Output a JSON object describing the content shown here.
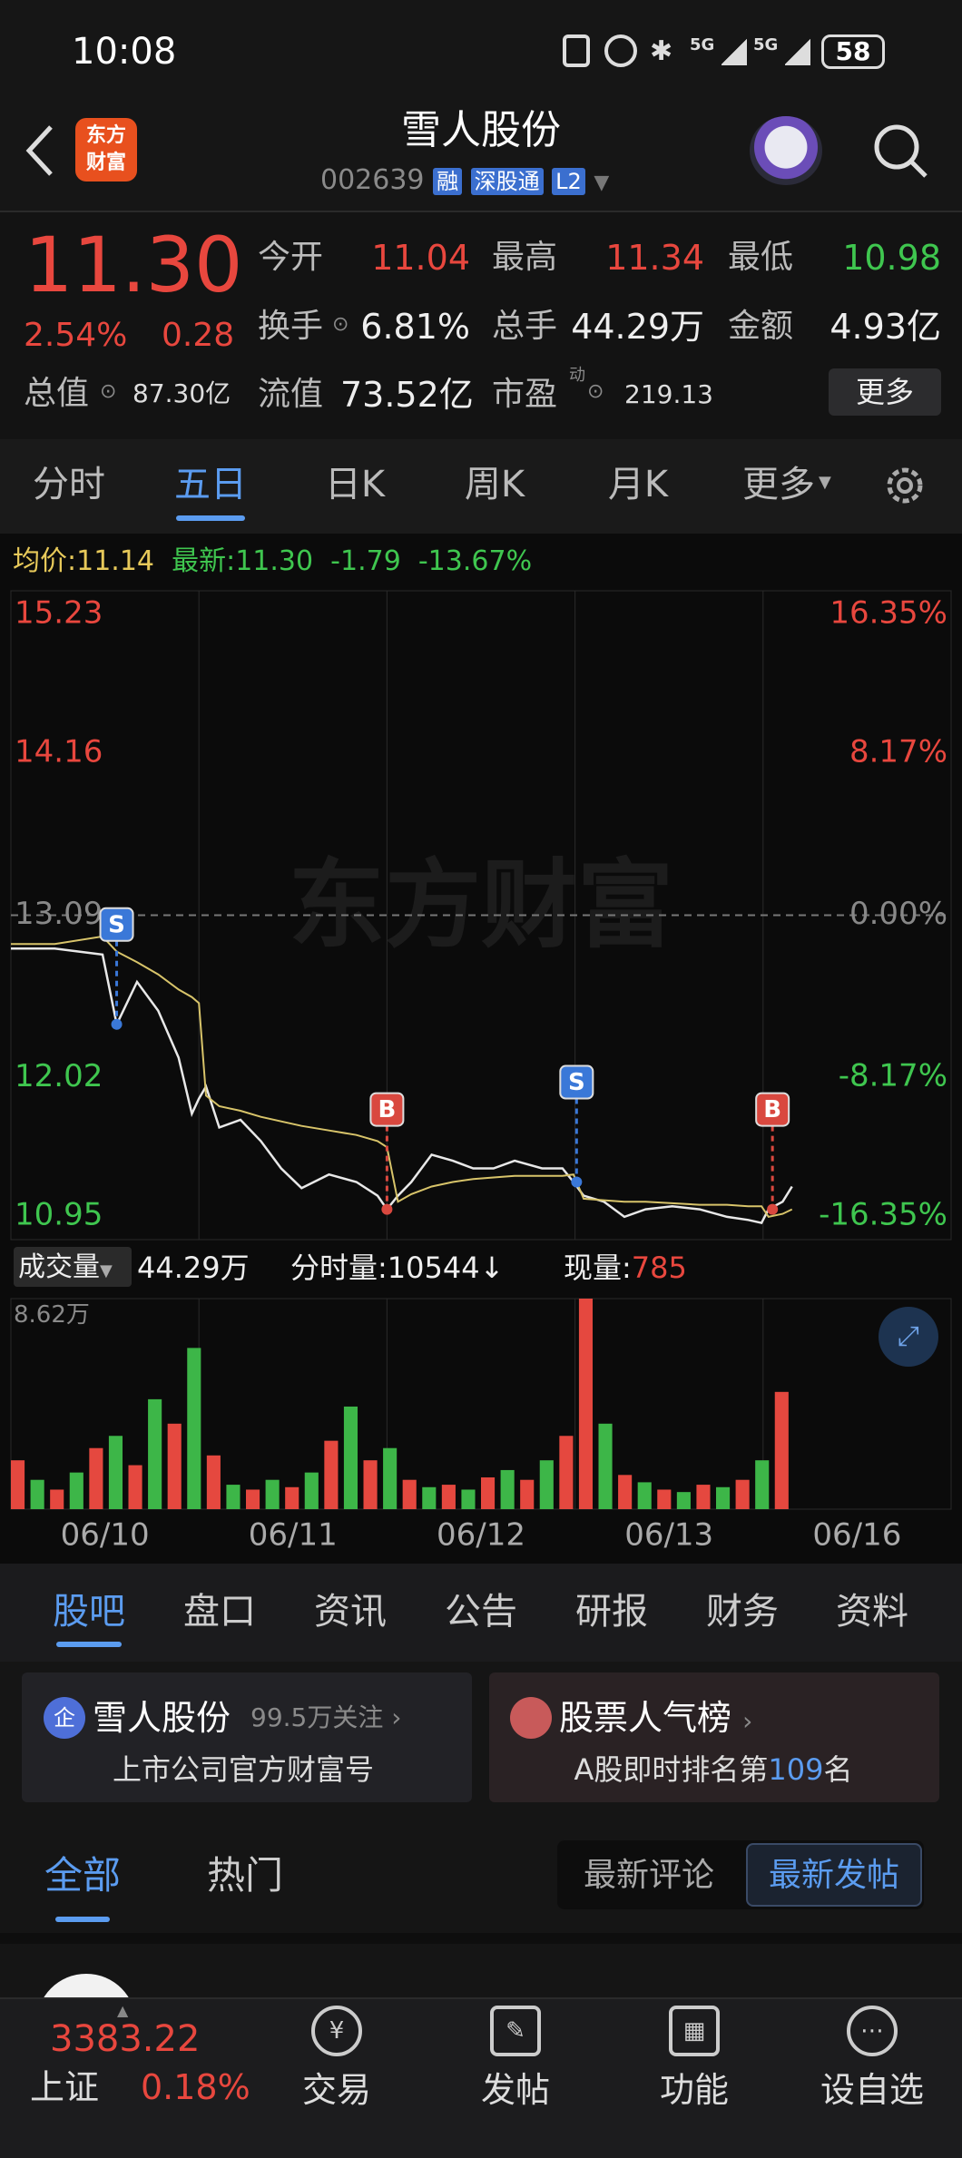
{
  "status_bar": {
    "time": "10:08",
    "signal_1": "5G",
    "signal_2": "5G",
    "battery": "58"
  },
  "header": {
    "logo_top": "东方",
    "logo_bottom": "财富",
    "title": "雪人股份",
    "code": "002639",
    "tags": [
      "融",
      "深股通",
      "L2"
    ]
  },
  "quote": {
    "price": "11.30",
    "change_pct": "2.54%",
    "change": "0.28",
    "total_value_label": "总值",
    "total_value": "87.30亿",
    "fields": [
      {
        "label": "今开",
        "value": "11.04"
      },
      {
        "label": "最高",
        "value": "11.34"
      },
      {
        "label": "最低",
        "value": "10.98"
      },
      {
        "label": "换手",
        "value": "6.81%"
      },
      {
        "label": "总手",
        "value": "44.29万"
      },
      {
        "label": "金额",
        "value": "4.93亿"
      },
      {
        "label": "流值",
        "value": "73.52亿"
      },
      {
        "label": "市盈",
        "value": "219.13"
      }
    ],
    "pe_superscript": "动",
    "more": "更多"
  },
  "period_tabs": {
    "items": [
      "分时",
      "五日",
      "日K",
      "周K",
      "月K",
      "更多"
    ],
    "active": 1
  },
  "chart_info": {
    "avg_label": "均价:",
    "avg": "11.14",
    "latest_label": "最新:",
    "latest": "11.30",
    "change": "-1.79",
    "change_pct": "-13.67%"
  },
  "chart_data": {
    "type": "line",
    "watermark": "东方财富",
    "x": [
      0,
      56,
      117,
      135,
      161,
      188,
      214,
      231,
      240,
      249,
      266,
      293,
      319,
      345,
      371,
      406,
      441,
      468,
      480,
      494,
      511,
      537,
      564,
      590,
      616,
      643,
      678,
      704,
      718,
      731,
      757,
      783,
      810,
      844,
      879,
      914,
      941,
      958,
      967,
      985,
      997
    ],
    "xlim": [
      0,
      1200
    ],
    "xgrid": [
      240,
      480,
      720,
      960
    ],
    "xticks": [
      {
        "value": 120,
        "label": "06/10"
      },
      {
        "value": 360,
        "label": "06/11"
      },
      {
        "value": 600,
        "label": "06/12"
      },
      {
        "value": 840,
        "label": "06/13"
      },
      {
        "value": 1080,
        "label": "06/16"
      }
    ],
    "ylim": [
      10.95,
      15.23
    ],
    "yticks": [
      10.95,
      12.02,
      13.09,
      14.16,
      15.23
    ],
    "y2lim": [
      -16.35,
      16.35
    ],
    "y2ticks": [
      {
        "value": -16.35,
        "label": "-16.35%"
      },
      {
        "value": -8.17,
        "label": "-8.17%"
      },
      {
        "value": 0,
        "label": "0.00%"
      },
      {
        "value": 8.17,
        "label": "8.17%"
      },
      {
        "value": 16.35,
        "label": "16.35%"
      }
    ],
    "reference_line": 13.09,
    "series": [
      {
        "color": "#e8e8e8",
        "values": [
          12.87,
          12.87,
          12.83,
          12.37,
          12.65,
          12.46,
          12.15,
          11.78,
          11.88,
          11.96,
          11.69,
          11.74,
          11.6,
          11.42,
          11.29,
          11.38,
          11.33,
          11.24,
          11.15,
          11.24,
          11.33,
          11.51,
          11.47,
          11.42,
          11.42,
          11.47,
          11.42,
          11.42,
          11.33,
          11.24,
          11.2,
          11.1,
          11.15,
          11.17,
          11.15,
          11.1,
          11.08,
          11.06,
          11.15,
          11.2,
          11.3
        ]
      },
      {
        "color": "#d8c46a",
        "values": [
          12.9,
          12.9,
          12.95,
          12.85,
          12.78,
          12.7,
          12.6,
          12.55,
          12.51,
          11.9,
          11.83,
          11.8,
          11.76,
          11.73,
          11.7,
          11.67,
          11.64,
          11.6,
          11.56,
          11.2,
          11.25,
          11.3,
          11.33,
          11.35,
          11.36,
          11.37,
          11.37,
          11.37,
          11.38,
          11.22,
          11.21,
          11.2,
          11.2,
          11.19,
          11.18,
          11.18,
          11.17,
          11.17,
          11.1,
          11.12,
          11.15
        ]
      }
    ],
    "markers": [
      {
        "label": "S",
        "x": 135,
        "price": 12.37,
        "color": "#3a78d8"
      },
      {
        "label": "B",
        "x": 480,
        "price": 11.15,
        "color": "#d9483f"
      },
      {
        "label": "S",
        "x": 722,
        "price": 11.33,
        "color": "#3a78d8"
      },
      {
        "label": "B",
        "x": 972,
        "price": 11.15,
        "color": "#d9483f"
      }
    ]
  },
  "volume_header": {
    "selector": "成交量",
    "total": "44.29万",
    "tick_volume": "分时量:10544↓",
    "now_label": "现量:",
    "now": "785"
  },
  "volume_chart": {
    "type": "bar",
    "max_label": "8.62万",
    "ylim": [
      0,
      8.62
    ],
    "x": [
      0,
      25,
      50,
      75,
      100,
      125,
      150,
      175,
      200,
      225,
      250,
      275,
      300,
      325,
      350,
      375,
      400,
      425,
      450,
      475,
      500,
      525,
      550,
      575,
      600,
      625,
      650,
      675,
      700,
      725,
      750,
      775,
      800,
      825,
      850,
      875,
      900,
      925,
      950,
      975
    ],
    "values": [
      2.0,
      1.2,
      0.8,
      1.5,
      2.5,
      3.0,
      1.8,
      4.5,
      3.5,
      6.6,
      2.2,
      1.0,
      0.8,
      1.2,
      0.9,
      1.5,
      2.8,
      4.2,
      2.0,
      2.5,
      1.2,
      0.9,
      1.0,
      0.8,
      1.3,
      1.6,
      1.2,
      2.0,
      3.0,
      8.62,
      3.5,
      1.4,
      1.1,
      0.8,
      0.7,
      1.0,
      0.9,
      1.2,
      2.0,
      4.8
    ],
    "colors": [
      "#e5483f",
      "#3db648",
      "#e5483f",
      "#3db648",
      "#e5483f",
      "#3db648",
      "#e5483f",
      "#3db648",
      "#e5483f",
      "#3db648",
      "#e5483f",
      "#3db648",
      "#e5483f",
      "#3db648",
      "#e5483f",
      "#3db648",
      "#e5483f",
      "#3db648",
      "#e5483f",
      "#3db648",
      "#e5483f",
      "#3db648",
      "#e5483f",
      "#3db648",
      "#e5483f",
      "#3db648",
      "#e5483f",
      "#3db648",
      "#e5483f",
      "#e5483f",
      "#3db648",
      "#e5483f",
      "#3db648",
      "#e5483f",
      "#3db648",
      "#e5483f",
      "#3db648",
      "#e5483f",
      "#3db648",
      "#e5483f"
    ]
  },
  "section_tabs": {
    "items": [
      "股吧",
      "盘口",
      "资讯",
      "公告",
      "研报",
      "财务",
      "资料"
    ],
    "active": 0
  },
  "cards": [
    {
      "badge": "企",
      "title": "雪人股份",
      "extra": "99.5万关注",
      "subtitle": "上市公司官方财富号"
    },
    {
      "title": "股票人气榜",
      "subtitle_prefix": "A股即时排名第",
      "rank": "109",
      "subtitle_suffix": "名"
    }
  ],
  "feed_tabs": {
    "items": [
      "全部",
      "热门"
    ],
    "active": 0
  },
  "sort_buttons": {
    "items": [
      "最新评论",
      "最新发帖"
    ],
    "active": 1
  },
  "bottom_nav": {
    "index_value": "3383.22",
    "index_name": "上证",
    "index_change": "0.18%",
    "items": [
      "交易",
      "发帖",
      "功能",
      "设自选"
    ]
  }
}
